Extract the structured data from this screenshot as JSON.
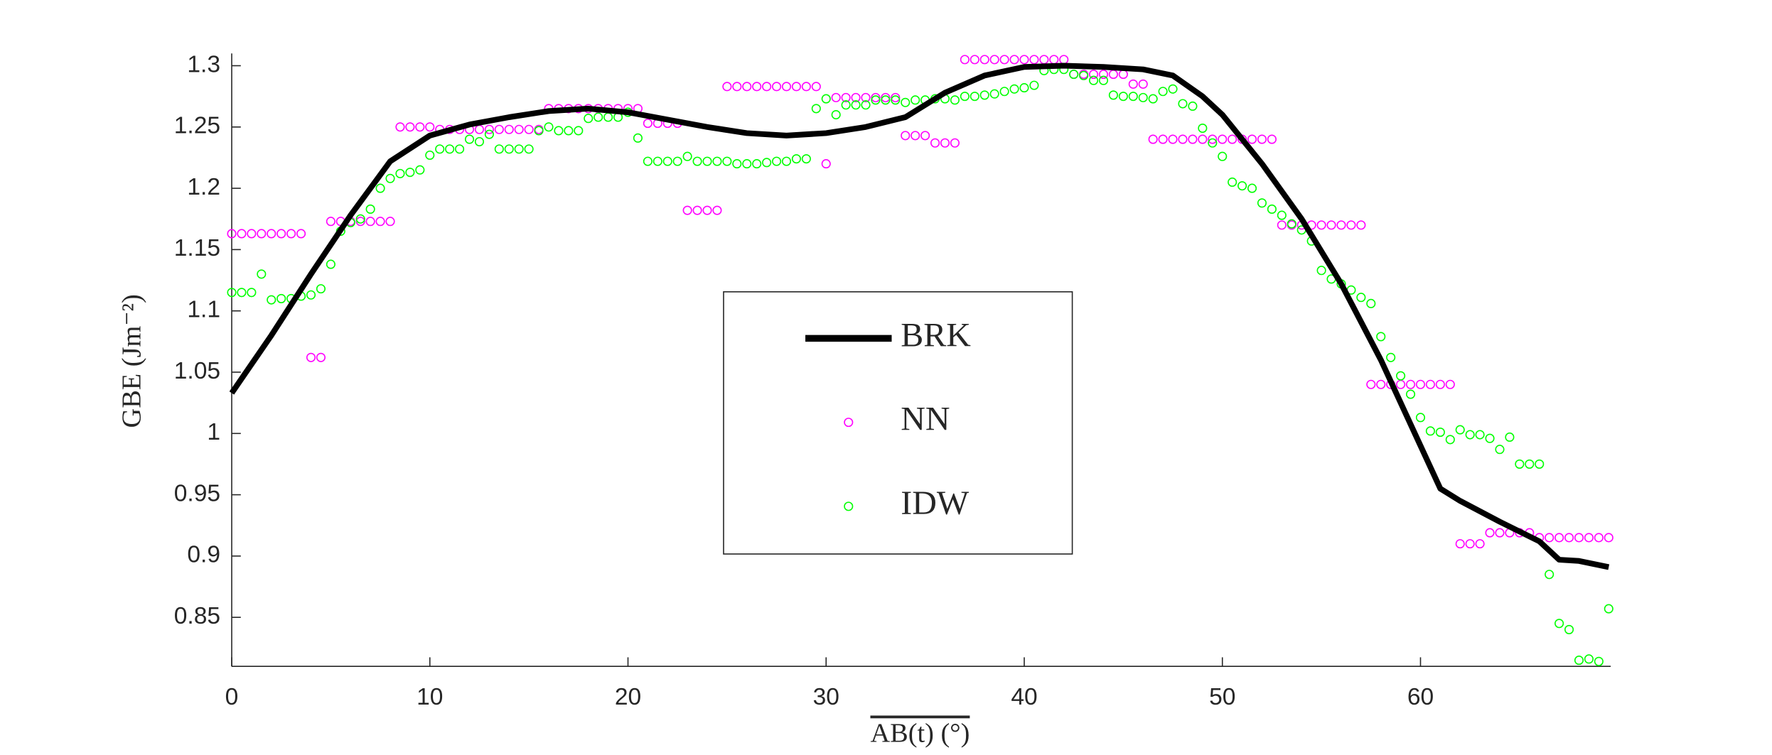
{
  "chart_data": {
    "type": "scatter-line",
    "xlabel": "AB(t) (°)",
    "ylabel": "GBE (Jm⁻²)",
    "xlim": [
      0,
      69.6
    ],
    "ylim": [
      0.81,
      1.31
    ],
    "xticks": [
      0,
      10,
      20,
      30,
      40,
      50,
      60
    ],
    "yticks": [
      0.85,
      0.9,
      0.95,
      1,
      1.05,
      1.1,
      1.15,
      1.2,
      1.25,
      1.3
    ],
    "legend": "center",
    "series": [
      {
        "name": "BRK",
        "kind": "line",
        "color": "#000000",
        "x": [
          0,
          2,
          4,
          6,
          8,
          10,
          12,
          14,
          16,
          18,
          20,
          22,
          24,
          26,
          28,
          30,
          32,
          34,
          36,
          38,
          40,
          42,
          44,
          46,
          47.5,
          49,
          50,
          52,
          54,
          56,
          58,
          60,
          61,
          62,
          64,
          66,
          67,
          68,
          69.5
        ],
        "values": [
          1.033,
          1.08,
          1.13,
          1.178,
          1.222,
          1.243,
          1.252,
          1.258,
          1.263,
          1.265,
          1.262,
          1.256,
          1.25,
          1.245,
          1.243,
          1.245,
          1.25,
          1.258,
          1.278,
          1.292,
          1.299,
          1.3,
          1.299,
          1.297,
          1.292,
          1.275,
          1.26,
          1.22,
          1.175,
          1.122,
          1.06,
          0.99,
          0.955,
          0.945,
          0.928,
          0.912,
          0.897,
          0.896,
          0.891
        ]
      },
      {
        "name": "NN",
        "kind": "points",
        "color": "#ff00ff",
        "x": [
          0,
          0.5,
          1,
          1.5,
          2,
          2.5,
          3,
          3.5,
          4,
          4.5,
          5,
          5.5,
          6,
          6.5,
          7,
          7.5,
          8,
          8.5,
          9,
          9.5,
          10,
          10.5,
          11,
          11.5,
          12,
          12.5,
          13,
          13.5,
          14,
          14.5,
          15,
          15.5,
          16,
          16.5,
          17,
          17.5,
          18,
          18.5,
          19,
          19.5,
          20,
          20.5,
          21,
          21.5,
          22,
          22.5,
          23,
          23.5,
          24,
          24.5,
          25,
          25.5,
          26,
          26.5,
          27,
          27.5,
          28,
          28.5,
          29,
          29.5,
          30,
          30.5,
          31,
          31.5,
          32,
          32.5,
          33,
          33.5,
          34,
          34.5,
          35,
          35.5,
          36,
          36.5,
          37,
          37.5,
          38,
          38.5,
          39,
          39.5,
          40,
          40.5,
          41,
          41.5,
          42,
          42.5,
          43,
          43.5,
          44,
          44.5,
          45,
          45.5,
          46,
          46.5,
          47,
          47.5,
          48,
          48.5,
          49,
          49.5,
          50,
          50.5,
          51,
          51.5,
          52,
          52.5,
          53,
          53.5,
          54,
          54.5,
          55,
          55.5,
          56,
          56.5,
          57,
          57.5,
          58,
          58.5,
          59,
          59.5,
          60,
          60.5,
          61,
          61.5,
          62,
          62.5,
          63,
          63.5,
          64,
          64.5,
          65,
          65.5,
          66,
          66.5,
          67,
          67.5,
          68,
          68.5,
          69,
          69.5
        ],
        "values": [
          1.163,
          1.163,
          1.163,
          1.163,
          1.163,
          1.163,
          1.163,
          1.163,
          1.062,
          1.062,
          1.173,
          1.173,
          1.173,
          1.173,
          1.173,
          1.173,
          1.173,
          1.25,
          1.25,
          1.25,
          1.25,
          1.248,
          1.248,
          1.248,
          1.248,
          1.248,
          1.248,
          1.248,
          1.248,
          1.248,
          1.248,
          1.248,
          1.265,
          1.265,
          1.265,
          1.265,
          1.265,
          1.265,
          1.265,
          1.265,
          1.265,
          1.265,
          1.253,
          1.253,
          1.253,
          1.253,
          1.182,
          1.182,
          1.182,
          1.182,
          1.283,
          1.283,
          1.283,
          1.283,
          1.283,
          1.283,
          1.283,
          1.283,
          1.283,
          1.283,
          1.22,
          1.274,
          1.274,
          1.274,
          1.274,
          1.274,
          1.274,
          1.274,
          1.243,
          1.243,
          1.243,
          1.237,
          1.237,
          1.237,
          1.305,
          1.305,
          1.305,
          1.305,
          1.305,
          1.305,
          1.305,
          1.305,
          1.305,
          1.305,
          1.305,
          1.293,
          1.293,
          1.293,
          1.293,
          1.293,
          1.293,
          1.285,
          1.285,
          1.24,
          1.24,
          1.24,
          1.24,
          1.24,
          1.24,
          1.24,
          1.24,
          1.24,
          1.24,
          1.24,
          1.24,
          1.24,
          1.17,
          1.17,
          1.17,
          1.17,
          1.17,
          1.17,
          1.17,
          1.17,
          1.17,
          1.04,
          1.04,
          1.04,
          1.04,
          1.04,
          1.04,
          1.04,
          1.04,
          1.04,
          0.91,
          0.91,
          0.91,
          0.919,
          0.919,
          0.919,
          0.919,
          0.919,
          0.915,
          0.915,
          0.915,
          0.915,
          0.915,
          0.915,
          0.915,
          0.915
        ]
      },
      {
        "name": "IDW",
        "kind": "points",
        "color": "#00ff00",
        "x": [
          0,
          0.5,
          1,
          1.5,
          2,
          2.5,
          3,
          3.5,
          4,
          4.5,
          5,
          5.5,
          6,
          6.5,
          7,
          7.5,
          8,
          8.5,
          9,
          9.5,
          10,
          10.5,
          11,
          11.5,
          12,
          12.5,
          13,
          13.5,
          14,
          14.5,
          15,
          15.5,
          16,
          16.5,
          17,
          17.5,
          18,
          18.5,
          19,
          19.5,
          20,
          20.5,
          21,
          21.5,
          22,
          22.5,
          23,
          23.5,
          24,
          24.5,
          25,
          25.5,
          26,
          26.5,
          27,
          27.5,
          28,
          28.5,
          29,
          29.5,
          30,
          30.5,
          31,
          31.5,
          32,
          32.5,
          33,
          33.5,
          34,
          34.5,
          35,
          35.5,
          36,
          36.5,
          37,
          37.5,
          38,
          38.5,
          39,
          39.5,
          40,
          40.5,
          41,
          41.5,
          42,
          42.5,
          43,
          43.5,
          44,
          44.5,
          45,
          45.5,
          46,
          46.5,
          47,
          47.5,
          48,
          48.5,
          49,
          49.5,
          50,
          50.5,
          51,
          51.5,
          52,
          52.5,
          53,
          53.5,
          54,
          54.5,
          55,
          55.5,
          56,
          56.5,
          57,
          57.5,
          58,
          58.5,
          59,
          59.5,
          60,
          60.5,
          61,
          61.5,
          62,
          62.5,
          63,
          63.5,
          64,
          64.5,
          65,
          65.5,
          66,
          66.5,
          67,
          67.5,
          68,
          68.5,
          69,
          69.5
        ],
        "values": [
          1.115,
          1.115,
          1.115,
          1.13,
          1.109,
          1.11,
          1.11,
          1.112,
          1.113,
          1.118,
          1.138,
          1.165,
          1.172,
          1.175,
          1.183,
          1.2,
          1.208,
          1.212,
          1.213,
          1.215,
          1.227,
          1.232,
          1.232,
          1.232,
          1.24,
          1.238,
          1.244,
          1.232,
          1.232,
          1.232,
          1.232,
          1.247,
          1.25,
          1.247,
          1.247,
          1.247,
          1.257,
          1.258,
          1.258,
          1.258,
          1.262,
          1.241,
          1.222,
          1.222,
          1.222,
          1.222,
          1.226,
          1.222,
          1.222,
          1.222,
          1.222,
          1.22,
          1.22,
          1.22,
          1.221,
          1.222,
          1.222,
          1.224,
          1.224,
          1.265,
          1.273,
          1.26,
          1.268,
          1.268,
          1.268,
          1.272,
          1.272,
          1.272,
          1.27,
          1.272,
          1.272,
          1.273,
          1.273,
          1.272,
          1.275,
          1.275,
          1.276,
          1.277,
          1.279,
          1.281,
          1.282,
          1.284,
          1.296,
          1.297,
          1.297,
          1.293,
          1.292,
          1.288,
          1.288,
          1.276,
          1.275,
          1.275,
          1.274,
          1.273,
          1.279,
          1.281,
          1.269,
          1.267,
          1.249,
          1.237,
          1.226,
          1.205,
          1.202,
          1.2,
          1.188,
          1.183,
          1.178,
          1.171,
          1.166,
          1.157,
          1.133,
          1.126,
          1.122,
          1.117,
          1.111,
          1.106,
          1.079,
          1.062,
          1.047,
          1.032,
          1.013,
          1.002,
          1.001,
          0.995,
          1.003,
          0.999,
          0.999,
          0.996,
          0.987,
          0.997,
          0.975,
          0.975,
          0.975,
          0.885,
          0.845,
          0.84,
          0.815,
          0.816,
          0.814,
          0.857
        ]
      }
    ]
  }
}
